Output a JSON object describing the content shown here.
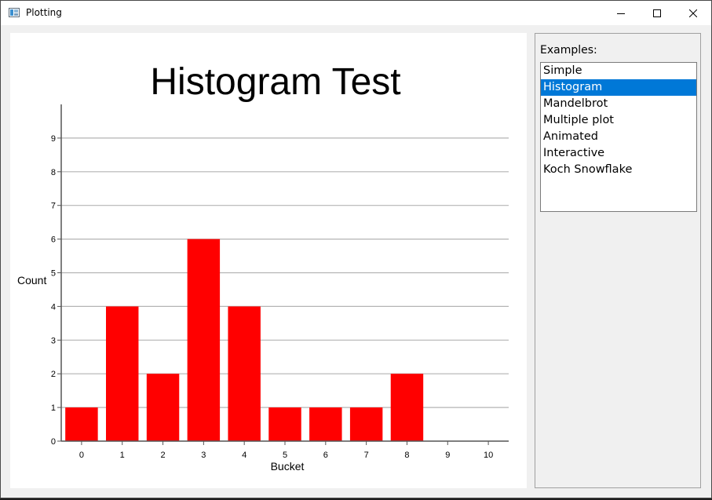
{
  "window": {
    "title": "Plotting"
  },
  "sidebar": {
    "label": "Examples:",
    "items": [
      "Simple",
      "Histogram",
      "Mandelbrot",
      "Multiple plot",
      "Animated",
      "Interactive",
      "Koch Snowflake"
    ],
    "selected_index": 1
  },
  "colors": {
    "bar": "#ff0000",
    "selection": "#0078d7",
    "grid": "#b4b4b4"
  },
  "chart_data": {
    "type": "bar",
    "title": "Histogram Test",
    "xlabel": "Bucket",
    "ylabel": "Count",
    "categories": [
      "0",
      "1",
      "2",
      "3",
      "4",
      "5",
      "6",
      "7",
      "8",
      "9",
      "10"
    ],
    "values": [
      1,
      4,
      2,
      6,
      4,
      1,
      1,
      1,
      2,
      0,
      0
    ],
    "yticks": [
      "0",
      "1",
      "2",
      "3",
      "4",
      "5",
      "6",
      "7",
      "8",
      "9"
    ],
    "ylim": [
      0,
      10
    ],
    "grid": true
  }
}
